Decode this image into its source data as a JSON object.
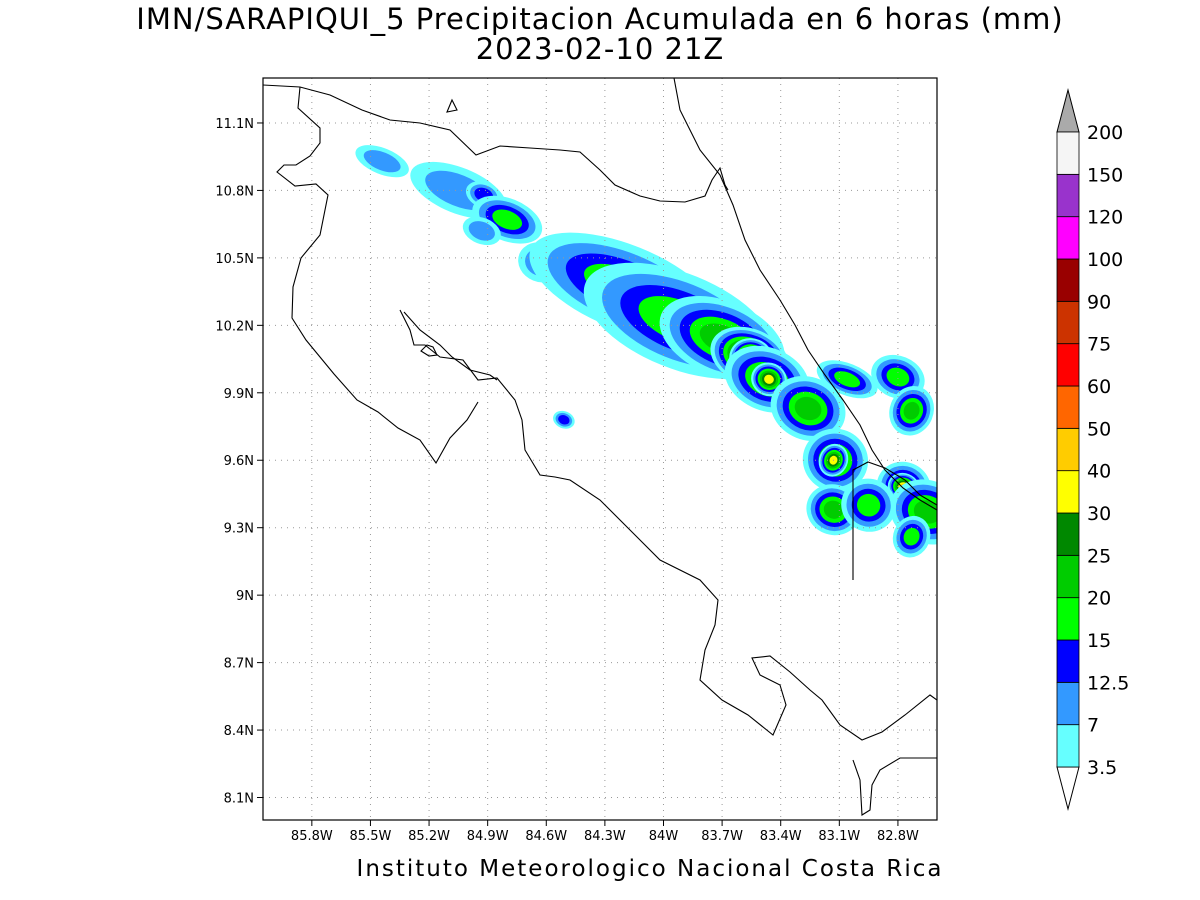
{
  "title": {
    "line1": "IMN/SARAPIQUI_5 Precipitacion Acumulada en 6 horas (mm)",
    "line2": "2023-02-10 21Z"
  },
  "footer": "Instituto Meteorologico Nacional Costa Rica",
  "map": {
    "lon_range": [
      -86.05,
      -82.6
    ],
    "lat_range": [
      8.0,
      11.3
    ],
    "lon_ticks": [
      {
        "value": -85.8,
        "label": "85.8W"
      },
      {
        "value": -85.5,
        "label": "85.5W"
      },
      {
        "value": -85.2,
        "label": "85.2W"
      },
      {
        "value": -84.9,
        "label": "84.9W"
      },
      {
        "value": -84.6,
        "label": "84.6W"
      },
      {
        "value": -84.3,
        "label": "84.3W"
      },
      {
        "value": -84.0,
        "label": "84W"
      },
      {
        "value": -83.7,
        "label": "83.7W"
      },
      {
        "value": -83.4,
        "label": "83.4W"
      },
      {
        "value": -83.1,
        "label": "83.1W"
      },
      {
        "value": -82.8,
        "label": "82.8W"
      }
    ],
    "lat_ticks": [
      {
        "value": 11.1,
        "label": "11.1N"
      },
      {
        "value": 10.8,
        "label": "10.8N"
      },
      {
        "value": 10.5,
        "label": "10.5N"
      },
      {
        "value": 10.2,
        "label": "10.2N"
      },
      {
        "value": 9.9,
        "label": "9.9N"
      },
      {
        "value": 9.6,
        "label": "9.6N"
      },
      {
        "value": 9.3,
        "label": "9.3N"
      },
      {
        "value": 9.0,
        "label": "9N"
      },
      {
        "value": 8.7,
        "label": "8.7N"
      },
      {
        "value": 8.4,
        "label": "8.4N"
      },
      {
        "value": 8.1,
        "label": "8.1N"
      }
    ],
    "grid": true
  },
  "legend": {
    "levels": [
      "3.5",
      "7",
      "12.5",
      "15",
      "20",
      "25",
      "30",
      "40",
      "50",
      "60",
      "75",
      "90",
      "100",
      "120",
      "150",
      "200"
    ],
    "colors": [
      "#66ffff",
      "#3399ff",
      "#0000ff",
      "#00ff00",
      "#00cc00",
      "#008800",
      "#ffff00",
      "#ffcc00",
      "#ff6600",
      "#ff0000",
      "#cc3300",
      "#990000",
      "#ff00ff",
      "#9933cc",
      "#f5f5f5"
    ],
    "under_color": "#ffffff",
    "over_color": "#aaaaaa"
  },
  "precip_cells": [
    {
      "lon": -85.44,
      "lat": 10.93,
      "rx": 0.1,
      "ry": 0.04,
      "level": 1
    },
    {
      "lon": -85.05,
      "lat": 10.8,
      "rx": 0.18,
      "ry": 0.07,
      "level": 1
    },
    {
      "lon": -84.92,
      "lat": 10.78,
      "rx": 0.05,
      "ry": 0.03,
      "level": 2
    },
    {
      "lon": -84.8,
      "lat": 10.67,
      "rx": 0.08,
      "ry": 0.04,
      "level": 3
    },
    {
      "lon": -84.93,
      "lat": 10.62,
      "rx": 0.07,
      "ry": 0.04,
      "level": 1
    },
    {
      "lon": -84.63,
      "lat": 10.48,
      "rx": 0.08,
      "ry": 0.06,
      "level": 1
    },
    {
      "lon": -84.2,
      "lat": 10.37,
      "rx": 0.22,
      "ry": 0.08,
      "level": 3
    },
    {
      "lon": -84.17,
      "lat": 10.36,
      "rx": 0.04,
      "ry": 0.025,
      "level": 6
    },
    {
      "lon": -84.06,
      "lat": 10.33,
      "rx": 0.06,
      "ry": 0.03,
      "level": 6
    },
    {
      "lon": -83.92,
      "lat": 10.22,
      "rx": 0.22,
      "ry": 0.09,
      "level": 3
    },
    {
      "lon": -83.7,
      "lat": 10.14,
      "rx": 0.12,
      "ry": 0.06,
      "level": 4
    },
    {
      "lon": -83.56,
      "lat": 10.06,
      "rx": 0.05,
      "ry": 0.03,
      "level": 7
    },
    {
      "lon": -83.55,
      "lat": 10.05,
      "rx": 0.025,
      "ry": 0.02,
      "level": 8
    },
    {
      "lon": -83.47,
      "lat": 9.96,
      "rx": 0.08,
      "ry": 0.05,
      "level": 4
    },
    {
      "lon": -83.46,
      "lat": 9.96,
      "rx": 0.025,
      "ry": 0.02,
      "level": 6
    },
    {
      "lon": -83.26,
      "lat": 9.83,
      "rx": 0.07,
      "ry": 0.05,
      "level": 4
    },
    {
      "lon": -83.12,
      "lat": 9.6,
      "rx": 0.06,
      "ry": 0.05,
      "level": 4
    },
    {
      "lon": -83.13,
      "lat": 9.6,
      "rx": 0.02,
      "ry": 0.02,
      "level": 6
    },
    {
      "lon": -82.77,
      "lat": 9.48,
      "rx": 0.05,
      "ry": 0.04,
      "level": 4
    },
    {
      "lon": -82.77,
      "lat": 9.48,
      "rx": 0.02,
      "ry": 0.015,
      "level": 7
    },
    {
      "lon": -82.65,
      "lat": 9.37,
      "rx": 0.07,
      "ry": 0.05,
      "level": 4
    },
    {
      "lon": -82.8,
      "lat": 9.97,
      "rx": 0.06,
      "ry": 0.04,
      "level": 3
    },
    {
      "lon": -82.73,
      "lat": 9.82,
      "rx": 0.04,
      "ry": 0.04,
      "level": 4
    },
    {
      "lon": -83.06,
      "lat": 9.96,
      "rx": 0.07,
      "ry": 0.03,
      "level": 3
    },
    {
      "lon": -84.51,
      "lat": 9.78,
      "rx": 0.03,
      "ry": 0.02,
      "level": 2
    },
    {
      "lon": -83.13,
      "lat": 9.38,
      "rx": 0.05,
      "ry": 0.04,
      "level": 4
    },
    {
      "lon": -82.95,
      "lat": 9.4,
      "rx": 0.06,
      "ry": 0.05,
      "level": 3
    },
    {
      "lon": -82.73,
      "lat": 9.26,
      "rx": 0.04,
      "ry": 0.04,
      "level": 3
    }
  ]
}
